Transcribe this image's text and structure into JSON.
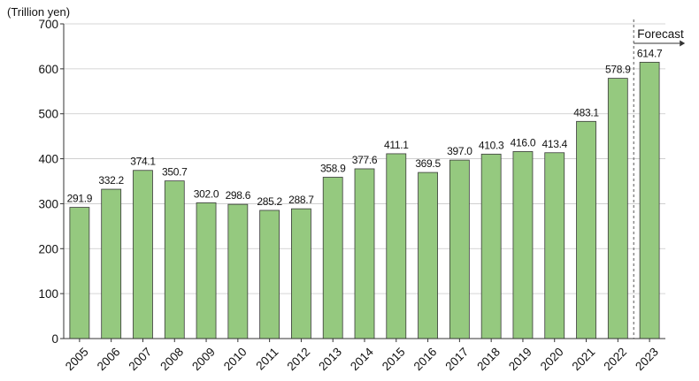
{
  "chart_data": {
    "type": "bar",
    "unit_label": "(Trillion yen)",
    "categories": [
      "2005",
      "2006",
      "2007",
      "2008",
      "2009",
      "2010",
      "2011",
      "2012",
      "2013",
      "2014",
      "2015",
      "2016",
      "2017",
      "2018",
      "2019",
      "2020",
      "2021",
      "2022",
      "2023"
    ],
    "values": [
      291.9,
      332.2,
      374.1,
      350.7,
      302.0,
      298.6,
      285.2,
      288.7,
      358.9,
      377.6,
      411.1,
      369.5,
      397.0,
      410.3,
      416.0,
      413.4,
      483.1,
      578.9,
      614.7
    ],
    "data_labels": [
      "291.9",
      "332.2",
      "374.1",
      "350.7",
      "302.0",
      "298.6",
      "285.2",
      "288.7",
      "358.9",
      "377.6",
      "411.1",
      "369.5",
      "397.0",
      "410.3",
      "416.0",
      "413.4",
      "483.1",
      "578.9",
      "614.7"
    ],
    "ylim": [
      0,
      700
    ],
    "yticks": [
      0,
      100,
      200,
      300,
      400,
      500,
      600,
      700
    ],
    "ytick_labels": [
      "0",
      "100",
      "200",
      "300",
      "400",
      "500",
      "600",
      "700"
    ],
    "grid": true,
    "bar_color": "#95c97f",
    "forecast": {
      "label": "Forecast",
      "starts_at": "2023"
    }
  }
}
